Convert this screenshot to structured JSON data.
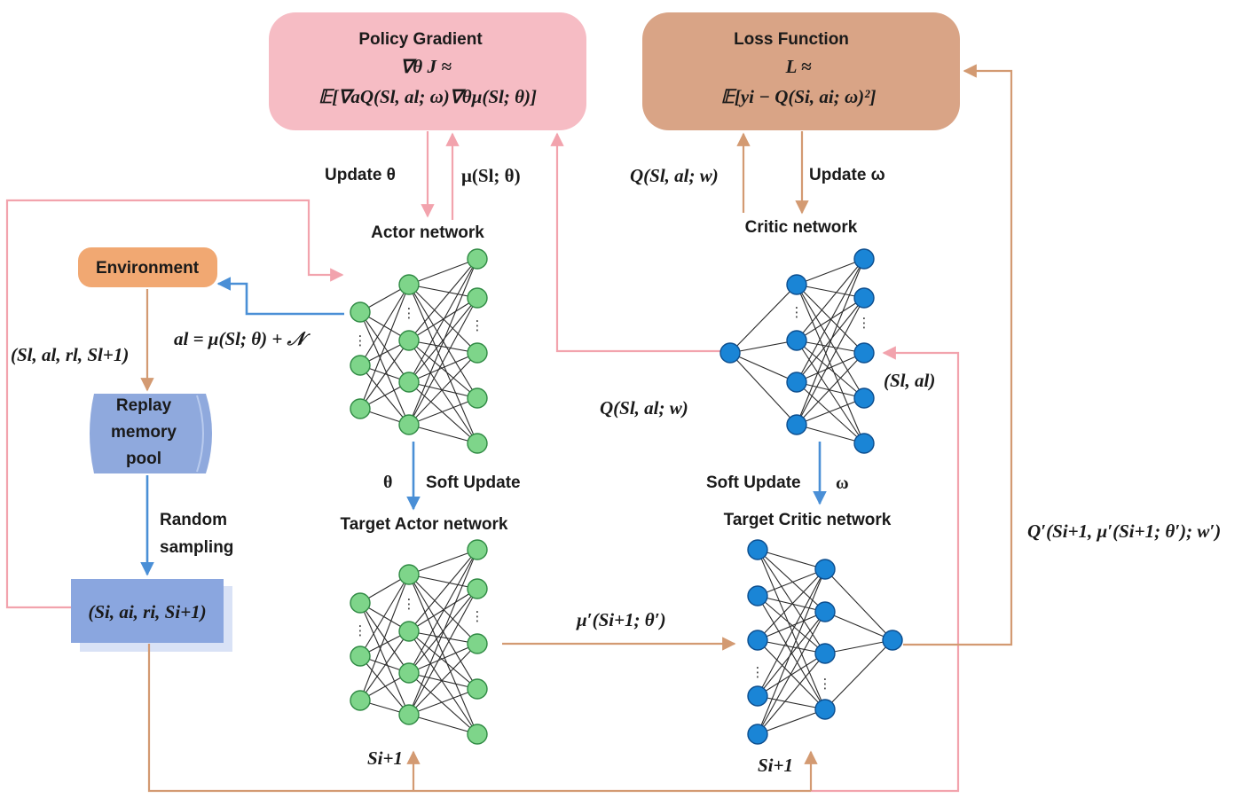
{
  "colors": {
    "pink_box": "#f6bcc4",
    "tan_box": "#d9a486",
    "env_box": "#f1a872",
    "replay_box": "#8fa9dd",
    "sample_box": "#8aa6df",
    "green_node": "#7ed58a",
    "green_stroke": "#2f8a43",
    "blue_node": "#1a85d6",
    "blue_stroke": "#0d4e8e",
    "pink_line": "#f2a3ad",
    "tan_line": "#d39a72",
    "blue_line": "#4a8fd6"
  },
  "boxes": {
    "policy_gradient": {
      "title": "Policy Gradient",
      "line1": "∇θ J ≈",
      "line2": "𝔼[∇aQ(Sl, al; ω)∇θμ(Sl; θ)]"
    },
    "loss_function": {
      "title": "Loss Function",
      "line1": "L ≈",
      "line2": "𝔼[yi − Q(Si, ai; ω)²]"
    },
    "environment": "Environment",
    "replay": {
      "line1": "Replay",
      "line2": "memory",
      "line3": "pool"
    },
    "sample": "(Si, ai, ri, Si+1)"
  },
  "networks": {
    "actor": "Actor network",
    "critic": "Critic network",
    "target_actor": "Target Actor network",
    "target_critic": "Target Critic network"
  },
  "labels": {
    "update_theta": "Update  θ",
    "mu": "μ(Sl; θ)",
    "q_top": "Q(Sl, al; w)",
    "update_omega": "Update ω",
    "transition": "(Sl, al, rl, Sl+1)",
    "action": "al = μ(Sl; θ) + 𝒩",
    "q_mid": "Q(Sl, al; w)",
    "state_action": "(Sl, al)",
    "theta": "θ",
    "soft_update_actor": "Soft Update",
    "soft_update_critic": "Soft Update",
    "omega": "ω",
    "random": "Random",
    "sampling": "sampling",
    "mu_prime": "μ′(Si+1; θ′)",
    "q_prime": "Q′(Si+1, μ′(Si+1; θ′); w′)",
    "s_next_actor": "Si+1",
    "s_next_critic": "Si+1"
  }
}
